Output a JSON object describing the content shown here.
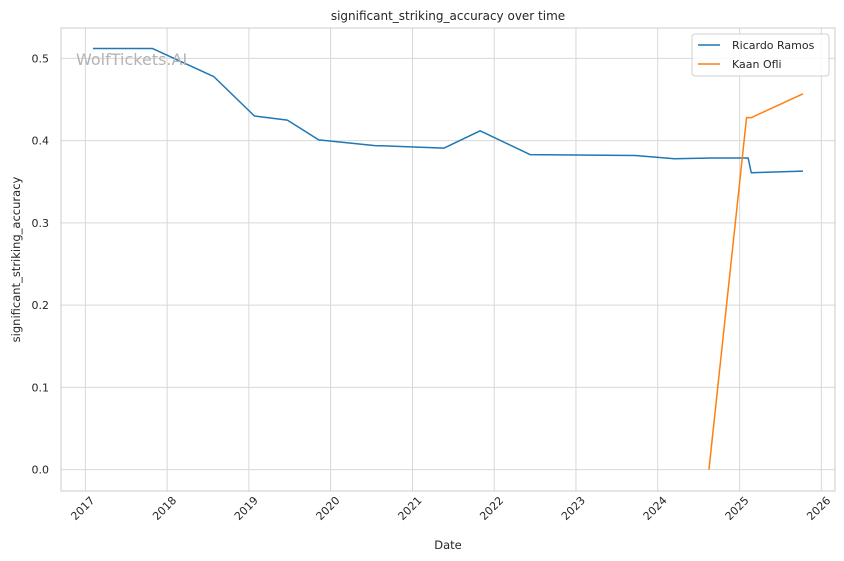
{
  "chart_data": {
    "type": "line",
    "title": "significant_striking_accuracy over time",
    "xlabel": "Date",
    "ylabel": "significant_striking_accuracy",
    "watermark": "WolfTickets.AI",
    "x_ticks": [
      "2017",
      "2018",
      "2019",
      "2020",
      "2021",
      "2022",
      "2023",
      "2024",
      "2025",
      "2026"
    ],
    "y_ticks": [
      "0.0",
      "0.1",
      "0.2",
      "0.3",
      "0.4",
      "0.5"
    ],
    "xlim": [
      "2016-09-14",
      "2026-03-03"
    ],
    "ylim": [
      -0.026,
      0.537
    ],
    "grid": true,
    "legend_position": "top-right",
    "series": [
      {
        "name": "Ricardo Ramos",
        "color": "#1f77b4",
        "points": [
          {
            "x": "2017-02-04",
            "y": 0.512
          },
          {
            "x": "2017-10-28",
            "y": 0.512
          },
          {
            "x": "2018-07-28",
            "y": 0.478
          },
          {
            "x": "2019-01-26",
            "y": 0.43
          },
          {
            "x": "2019-06-22",
            "y": 0.425
          },
          {
            "x": "2019-11-09",
            "y": 0.401
          },
          {
            "x": "2020-07-18",
            "y": 0.394
          },
          {
            "x": "2021-05-22",
            "y": 0.391
          },
          {
            "x": "2021-10-30",
            "y": 0.412
          },
          {
            "x": "2022-06-11",
            "y": 0.383
          },
          {
            "x": "2023-09-23",
            "y": 0.382
          },
          {
            "x": "2024-03-16",
            "y": 0.378
          },
          {
            "x": "2024-08-31",
            "y": 0.379
          },
          {
            "x": "2025-02-08",
            "y": 0.379
          },
          {
            "x": "2025-02-22",
            "y": 0.361
          },
          {
            "x": "2025-10-11",
            "y": 0.363
          }
        ]
      },
      {
        "name": "Kaan Ofli",
        "color": "#ff7f0e",
        "points": [
          {
            "x": "2024-08-17",
            "y": 0.0
          },
          {
            "x": "2025-02-01",
            "y": 0.428
          },
          {
            "x": "2025-02-22",
            "y": 0.428
          },
          {
            "x": "2025-10-11",
            "y": 0.457
          }
        ]
      }
    ]
  }
}
